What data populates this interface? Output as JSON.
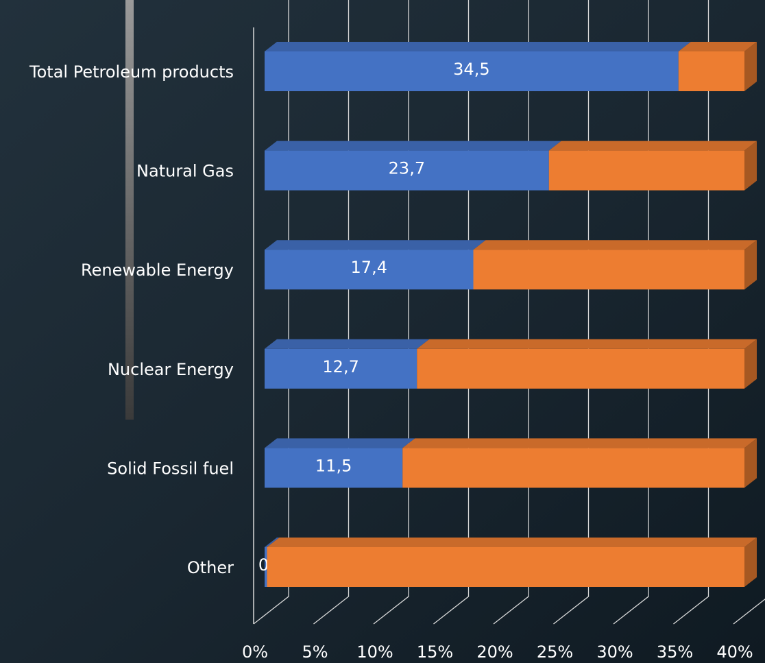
{
  "chart_data": {
    "type": "bar3d",
    "orientation": "horizontal",
    "stacked": true,
    "categories": [
      "Total Petroleum products",
      "Natural Gas",
      "Renewable Energy",
      "Nuclear Energy",
      "Solid Fossil fuel",
      "Other"
    ],
    "series": [
      {
        "color": "#4472c4",
        "values": [
          34.5,
          23.7,
          17.4,
          12.7,
          11.5,
          0.2
        ],
        "value_labels": [
          "34,5",
          "23,7",
          "17,4",
          "12,7",
          "11,5",
          "0,2"
        ]
      },
      {
        "color": "#ed7d31",
        "values": [
          5.5,
          16.3,
          22.6,
          27.3,
          28.5,
          39.8
        ]
      }
    ],
    "xlim": [
      0,
      40
    ],
    "xticks": [
      {
        "value": 0,
        "label": "0%"
      },
      {
        "value": 5,
        "label": "5%"
      },
      {
        "value": 10,
        "label": "10%"
      },
      {
        "value": 15,
        "label": "15%"
      },
      {
        "value": 20,
        "label": "20%"
      },
      {
        "value": 25,
        "label": "25%"
      },
      {
        "value": 30,
        "label": "30%"
      },
      {
        "value": 35,
        "label": "35%"
      },
      {
        "value": 40,
        "label": "40%"
      }
    ],
    "grid": true
  }
}
